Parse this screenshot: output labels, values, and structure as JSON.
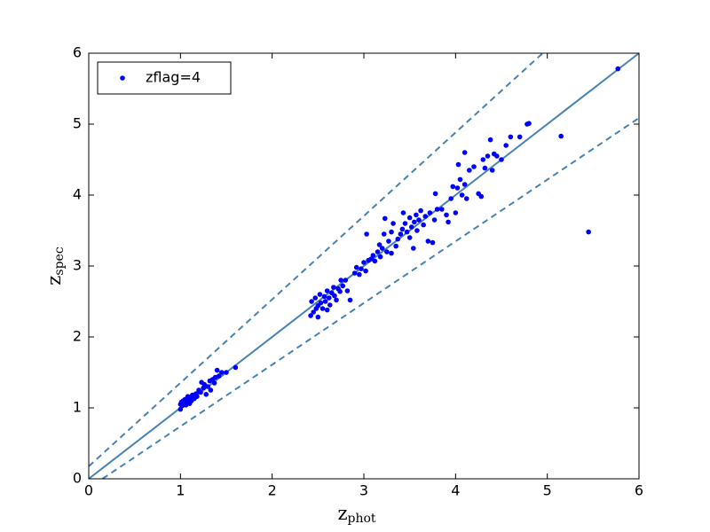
{
  "chart_data": {
    "type": "scatter",
    "xlabel": "z",
    "xlabel_subscript": "phot",
    "ylabel": "z",
    "ylabel_subscript": "spec",
    "xlim": [
      0,
      6
    ],
    "ylim": [
      0,
      6
    ],
    "xticks": [
      0,
      1,
      2,
      3,
      4,
      5,
      6
    ],
    "yticks": [
      0,
      1,
      2,
      3,
      4,
      5,
      6
    ],
    "legend": "upper left",
    "series": [
      {
        "name": "zflag=4",
        "color": "#0000ff",
        "x": [
          1.0,
          1.0,
          1.01,
          1.02,
          1.03,
          1.05,
          1.06,
          1.07,
          1.08,
          1.1,
          1.1,
          1.12,
          1.13,
          1.15,
          1.17,
          1.18,
          1.2,
          1.22,
          1.23,
          1.25,
          1.27,
          1.28,
          1.3,
          1.32,
          1.33,
          1.35,
          1.37,
          1.38,
          1.4,
          1.42,
          1.45,
          1.5,
          1.6,
          1.26,
          1.05,
          1.08,
          2.42,
          2.43,
          2.45,
          2.47,
          2.5,
          2.5,
          2.52,
          2.53,
          2.55,
          2.57,
          2.58,
          2.6,
          2.62,
          2.63,
          2.65,
          2.67,
          2.68,
          2.7,
          2.72,
          2.74,
          2.75,
          2.77,
          2.8,
          2.82,
          2.85,
          2.6,
          2.48,
          2.9,
          2.92,
          2.95,
          2.97,
          3.0,
          3.02,
          3.03,
          3.05,
          3.08,
          3.1,
          3.12,
          3.15,
          3.17,
          3.18,
          3.2,
          3.22,
          3.23,
          3.25,
          3.27,
          3.3,
          3.3,
          3.32,
          3.35,
          3.37,
          3.4,
          3.42,
          3.43,
          3.45,
          3.47,
          3.5,
          3.5,
          3.52,
          3.54,
          3.55,
          3.57,
          3.58,
          3.6,
          3.62,
          3.65,
          3.67,
          3.7,
          3.72,
          3.75,
          3.77,
          3.8,
          3.78,
          3.85,
          3.9,
          3.92,
          3.95,
          3.97,
          4.0,
          4.02,
          4.05,
          4.07,
          4.1,
          4.12,
          4.15,
          4.2,
          4.25,
          4.28,
          4.3,
          4.32,
          4.35,
          4.38,
          4.4,
          4.42,
          4.45,
          4.5,
          4.55,
          4.6,
          4.7,
          4.78,
          4.8,
          4.1,
          4.03,
          5.15,
          5.45,
          5.77
        ],
        "values": [
          0.98,
          1.05,
          1.08,
          1.03,
          1.1,
          1.06,
          1.04,
          1.12,
          1.08,
          1.15,
          1.06,
          1.1,
          1.18,
          1.13,
          1.2,
          1.16,
          1.25,
          1.22,
          1.36,
          1.28,
          1.31,
          1.19,
          1.3,
          1.38,
          1.25,
          1.4,
          1.35,
          1.43,
          1.53,
          1.45,
          1.5,
          1.5,
          1.57,
          1.33,
          1.12,
          1.16,
          2.3,
          2.5,
          2.35,
          2.55,
          2.28,
          2.44,
          2.6,
          2.48,
          2.4,
          2.57,
          2.5,
          2.65,
          2.55,
          2.45,
          2.62,
          2.7,
          2.58,
          2.52,
          2.68,
          2.64,
          2.8,
          2.72,
          2.8,
          2.65,
          2.52,
          2.38,
          2.4,
          2.9,
          2.98,
          2.88,
          2.96,
          3.05,
          2.93,
          3.45,
          3.08,
          3.1,
          3.15,
          3.07,
          3.2,
          3.3,
          3.13,
          3.25,
          3.45,
          3.67,
          3.2,
          3.35,
          3.18,
          3.48,
          3.6,
          3.28,
          3.38,
          3.45,
          3.52,
          3.75,
          3.6,
          3.48,
          3.4,
          3.68,
          3.55,
          3.25,
          3.62,
          3.72,
          3.5,
          3.65,
          3.78,
          3.58,
          3.7,
          3.35,
          3.75,
          3.33,
          3.65,
          3.8,
          4.02,
          3.8,
          3.72,
          3.62,
          3.95,
          4.12,
          3.75,
          4.1,
          4.22,
          4.0,
          4.15,
          3.95,
          4.35,
          4.4,
          4.02,
          3.98,
          4.5,
          4.38,
          4.55,
          4.78,
          4.35,
          4.58,
          4.55,
          4.5,
          4.7,
          4.82,
          4.82,
          5.0,
          5.01,
          4.6,
          4.43,
          4.83,
          3.48,
          5.78
        ]
      }
    ],
    "lines": [
      {
        "color": "#4682b4",
        "style": "solid",
        "x": [
          0,
          6
        ],
        "values": [
          0,
          6
        ]
      },
      {
        "color": "#4682b4",
        "style": "dashed",
        "x": [
          0,
          4.95
        ],
        "values": [
          0.176,
          6
        ]
      },
      {
        "color": "#4682b4",
        "style": "dashed",
        "x": [
          0.15,
          6
        ],
        "values": [
          0,
          5.087
        ]
      }
    ]
  }
}
